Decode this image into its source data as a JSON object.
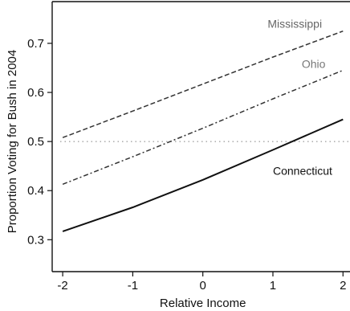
{
  "chart_data": {
    "type": "line",
    "title": "",
    "xlabel": "Relative Income",
    "ylabel": "Proportion Voting for Bush in 2004",
    "xlim": [
      -2.15,
      2.1
    ],
    "ylim": [
      0.235,
      0.785
    ],
    "xticks": [
      -2,
      -1,
      0,
      1,
      2
    ],
    "yticks": [
      0.3,
      0.4,
      0.5,
      0.6,
      0.7
    ],
    "xtick_labels": [
      "-2",
      "-1",
      "0",
      "1",
      "2"
    ],
    "ytick_labels": [
      "0.3",
      "0.4",
      "0.5",
      "0.6",
      "0.7"
    ],
    "grid": false,
    "reference_line": {
      "y": 0.5,
      "style": "dotted"
    },
    "series": [
      {
        "name": "Mississippi",
        "style": "dashed",
        "color": "#333333",
        "x": [
          -2,
          -1,
          0,
          1,
          2
        ],
        "y": [
          0.508,
          0.562,
          0.617,
          0.672,
          0.725
        ]
      },
      {
        "name": "Ohio",
        "style": "dashdot",
        "color": "#333333",
        "x": [
          -2,
          -1,
          0,
          1,
          2
        ],
        "y": [
          0.413,
          0.469,
          0.527,
          0.587,
          0.645
        ]
      },
      {
        "name": "Connecticut",
        "style": "solid",
        "color": "#111111",
        "x": [
          -2,
          -1,
          0,
          1,
          2
        ],
        "y": [
          0.317,
          0.366,
          0.422,
          0.483,
          0.545
        ]
      }
    ]
  }
}
